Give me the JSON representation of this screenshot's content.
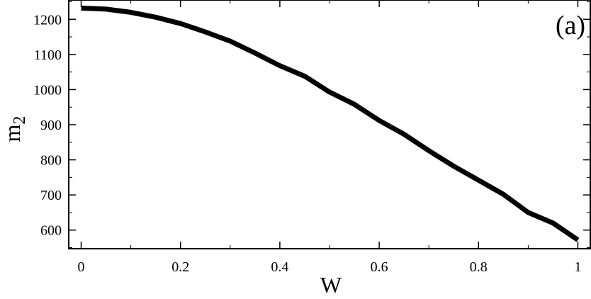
{
  "chart_data": {
    "type": "line",
    "panel_label": "(a)",
    "xlabel": "W",
    "ylabel_base": "m",
    "ylabel_sub": "2",
    "xlim": [
      -0.025,
      1.025
    ],
    "ylim": [
      547,
      1255
    ],
    "x_ticks": [
      0,
      0.2,
      0.4,
      0.6,
      0.8,
      1
    ],
    "x_tick_labels": [
      "0",
      "0.2",
      "0.4",
      "0.6",
      "0.8",
      "1"
    ],
    "y_ticks": [
      600,
      700,
      800,
      900,
      1000,
      1100,
      1200
    ],
    "y_tick_labels": [
      "600",
      "700",
      "800",
      "900",
      "1000",
      "1100",
      "1200"
    ],
    "grid": false,
    "series": [
      {
        "color": "#000000",
        "x": [
          0,
          0.05,
          0.1,
          0.15,
          0.2,
          0.25,
          0.3,
          0.35,
          0.4,
          0.45,
          0.5,
          0.55,
          0.6,
          0.65,
          0.7,
          0.75,
          0.8,
          0.85,
          0.9,
          0.95,
          1.0
        ],
        "y": [
          1232,
          1229,
          1220,
          1206,
          1188,
          1164,
          1138,
          1104,
          1068,
          1038,
          993,
          958,
          912,
          873,
          826,
          782,
          742,
          702,
          650,
          620,
          572
        ]
      }
    ]
  }
}
